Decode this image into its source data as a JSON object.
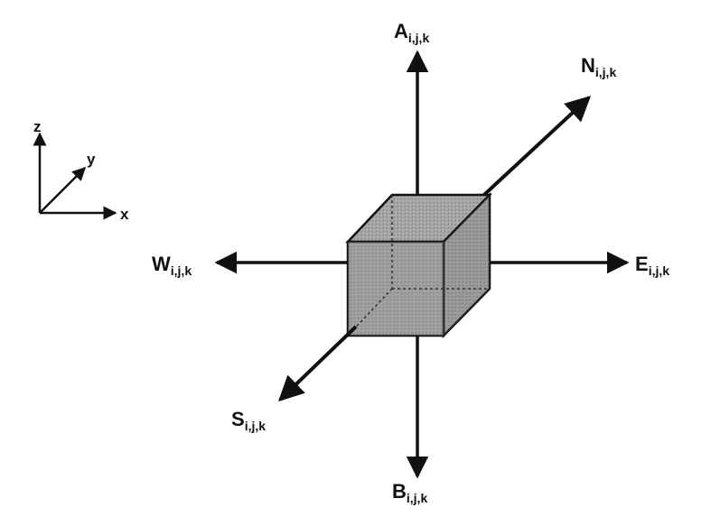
{
  "labels": {
    "above": {
      "letter": "A",
      "subscript": "i,j,k"
    },
    "north": {
      "letter": "N",
      "subscript": "i,j,k"
    },
    "east": {
      "letter": "E",
      "subscript": "i,j,k"
    },
    "west": {
      "letter": "W",
      "subscript": "i,j,k"
    },
    "south": {
      "letter": "S",
      "subscript": "i,j,k"
    },
    "below": {
      "letter": "B",
      "subscript": "i,j,k"
    }
  },
  "axes": {
    "z": "z",
    "y": "y",
    "x": "x"
  },
  "colors": {
    "line": "#111111",
    "cube_front": "#9a9a9a",
    "cube_top": "#b5b5b5",
    "cube_side": "#8a8a8a"
  }
}
